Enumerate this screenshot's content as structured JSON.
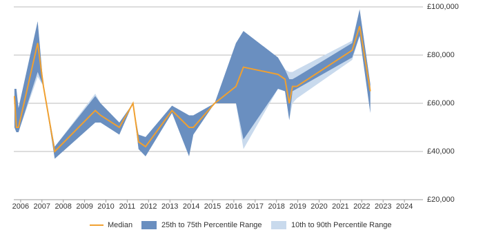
{
  "chart_data": {
    "type": "range-line",
    "x": [
      2005.71,
      2005.8,
      2005.9,
      2006.8,
      2007.07,
      2007.6,
      2009.5,
      2009.75,
      2010.63,
      2011.27,
      2011.53,
      2011.86,
      2013.1,
      2013.9,
      2014.1,
      2015.1,
      2016.1,
      2016.45,
      2018.07,
      2018.4,
      2018.6,
      2018.75,
      2018.95,
      2021.55,
      2021.9,
      2022.4
    ],
    "series": [
      {
        "name": "Median",
        "color": "#f0a030",
        "values": [
          63000,
          50000,
          50000,
          85000,
          67000,
          40000,
          57000,
          55000,
          50000,
          60000,
          44000,
          42000,
          57000,
          50000,
          50000,
          60000,
          67000,
          75000,
          72000,
          70000,
          60000,
          67000,
          67000,
          82000,
          92000,
          65000
        ]
      },
      {
        "name": "25th to 75th Percentile Range",
        "color": "#6a8fc0",
        "low": [
          50000,
          48000,
          48000,
          73000,
          67000,
          37000,
          52000,
          52000,
          47000,
          60000,
          41000,
          38000,
          56000,
          38000,
          47000,
          60000,
          60000,
          45000,
          66000,
          65000,
          53000,
          65000,
          66000,
          79000,
          88000,
          56000
        ],
        "high": [
          66000,
          66000,
          58000,
          94000,
          67000,
          42000,
          63000,
          60000,
          52000,
          60000,
          47000,
          46000,
          59000,
          55000,
          55000,
          60000,
          85000,
          90000,
          79000,
          74000,
          70000,
          70000,
          71000,
          85000,
          99000,
          68000
        ]
      },
      {
        "name": "10th to 90th Percentile Range",
        "color": "#c9daed",
        "low": [
          50000,
          48000,
          48000,
          71000,
          67000,
          37000,
          52000,
          52000,
          47000,
          60000,
          41000,
          38000,
          56000,
          38000,
          47000,
          60000,
          60000,
          41000,
          66000,
          65000,
          53000,
          60000,
          62000,
          78000,
          88000,
          56000
        ],
        "high": [
          66000,
          66000,
          58000,
          94000,
          67000,
          42000,
          64000,
          60000,
          52000,
          60000,
          47000,
          46000,
          59000,
          55000,
          55000,
          60000,
          85000,
          89000,
          79000,
          74000,
          73000,
          73000,
          74000,
          86000,
          99000,
          68000
        ]
      }
    ],
    "xlim": [
      2005.68,
      2024.87
    ],
    "xticks": [
      2006,
      2007,
      2008,
      2009,
      2010,
      2011,
      2012,
      2013,
      2014,
      2015,
      2016,
      2017,
      2018,
      2019,
      2020,
      2021,
      2022,
      2023,
      2024
    ],
    "ylim": [
      20000,
      100000
    ],
    "yticks": [
      {
        "value": 20000,
        "label": "£20,000"
      },
      {
        "value": 40000,
        "label": "£40,000"
      },
      {
        "value": 60000,
        "label": "£60,000"
      },
      {
        "value": 80000,
        "label": "£80,000"
      },
      {
        "value": 100000,
        "label": "£100,000"
      }
    ],
    "grid": true
  }
}
